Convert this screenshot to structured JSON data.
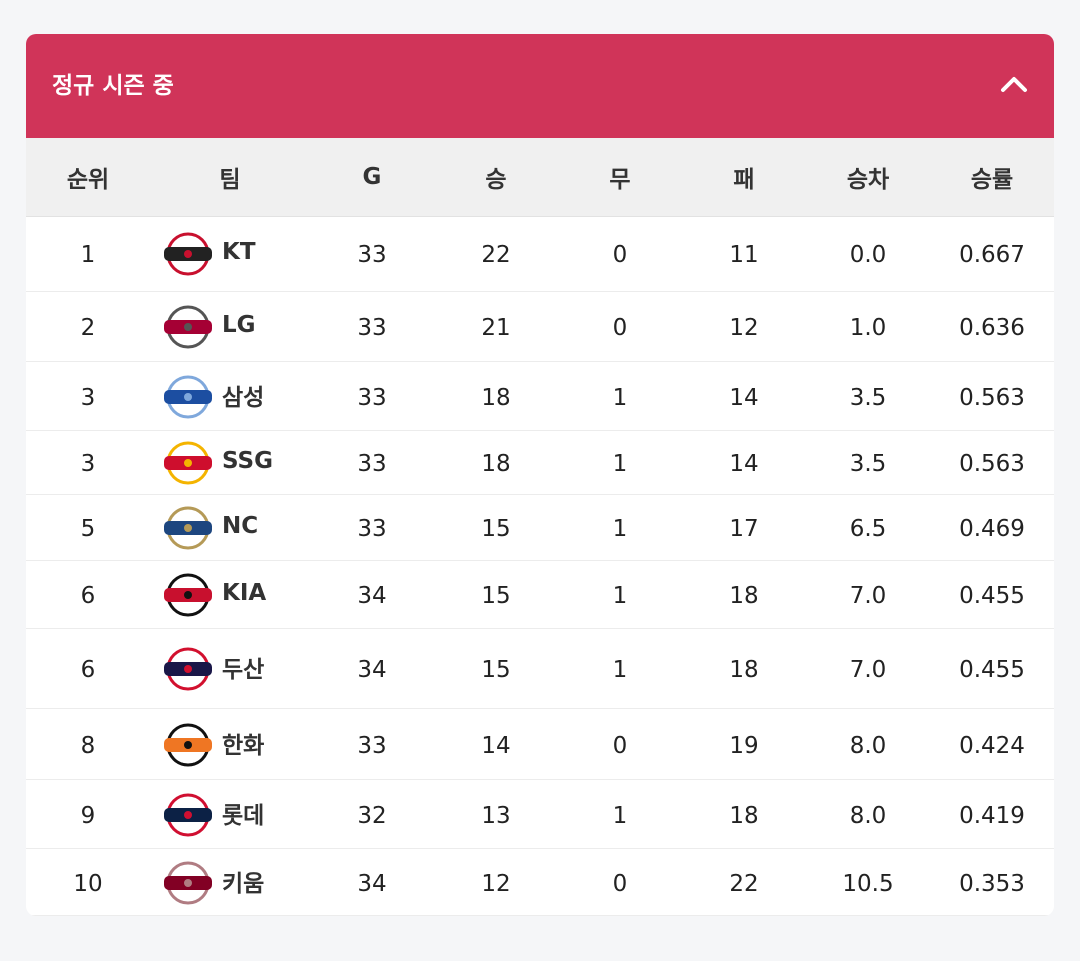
{
  "header": {
    "title": "정규 시즌 중"
  },
  "table": {
    "columns": [
      "순위",
      "팀",
      "G",
      "승",
      "무",
      "패",
      "승차",
      "승률"
    ],
    "rows": [
      [
        "1",
        "KT",
        "33",
        "22",
        "0",
        "11",
        "0.0",
        "0.667"
      ],
      [
        "2",
        "LG",
        "33",
        "21",
        "0",
        "12",
        "1.0",
        "0.636"
      ],
      [
        "3",
        "삼성",
        "33",
        "18",
        "1",
        "14",
        "3.5",
        "0.563"
      ],
      [
        "3",
        "SSG",
        "33",
        "18",
        "1",
        "14",
        "3.5",
        "0.563"
      ],
      [
        "5",
        "NC",
        "33",
        "15",
        "1",
        "17",
        "6.5",
        "0.469"
      ],
      [
        "6",
        "KIA",
        "34",
        "15",
        "1",
        "18",
        "7.0",
        "0.455"
      ],
      [
        "6",
        "두산",
        "34",
        "15",
        "1",
        "18",
        "7.0",
        "0.455"
      ],
      [
        "8",
        "한화",
        "33",
        "14",
        "0",
        "19",
        "8.0",
        "0.424"
      ],
      [
        "9",
        "롯데",
        "32",
        "13",
        "1",
        "18",
        "8.0",
        "0.419"
      ],
      [
        "10",
        "키움",
        "34",
        "12",
        "0",
        "22",
        "10.5",
        "0.353"
      ]
    ]
  }
}
